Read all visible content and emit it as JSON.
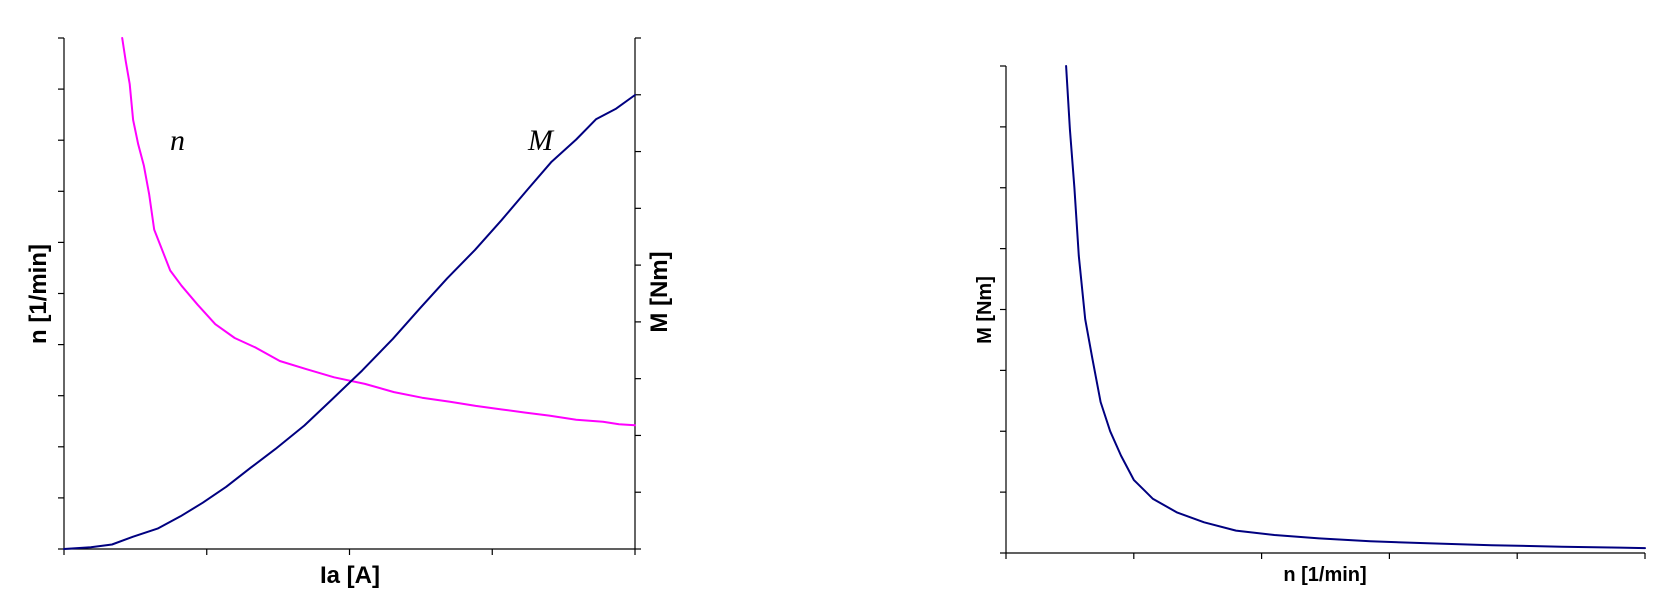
{
  "chart_data": [
    {
      "type": "line",
      "xlabel": "Ia [A]",
      "ylabel_left": "n [1/min]",
      "ylabel_right": "M [Nm]",
      "xlim": [
        0,
        1
      ],
      "ylim_left": [
        0,
        1
      ],
      "ylim_right": [
        0,
        1
      ],
      "x_ticks": 4,
      "y_left_ticks": 10,
      "y_right_ticks": 9,
      "grid": false,
      "annotations": [
        "n",
        "M"
      ],
      "series": [
        {
          "axis": "left",
          "color": "#ff00ff",
          "x": [
            0.102,
            0.108,
            0.115,
            0.121,
            0.13,
            0.14,
            0.149,
            0.158,
            0.171,
            0.186,
            0.206,
            0.234,
            0.265,
            0.299,
            0.336,
            0.378,
            0.424,
            0.473,
            0.527,
            0.578,
            0.627,
            0.676,
            0.721,
            0.767,
            0.808,
            0.85,
            0.897,
            0.944,
            0.972,
            1.0
          ],
          "y": [
            1.0,
            0.955,
            0.91,
            0.84,
            0.792,
            0.75,
            0.695,
            0.625,
            0.588,
            0.545,
            0.515,
            0.478,
            0.44,
            0.413,
            0.394,
            0.368,
            0.352,
            0.336,
            0.323,
            0.307,
            0.296,
            0.288,
            0.28,
            0.273,
            0.267,
            0.261,
            0.253,
            0.249,
            0.244,
            0.242
          ]
        },
        {
          "axis": "right",
          "color": "#000080",
          "x": [
            0.0,
            0.047,
            0.084,
            0.121,
            0.164,
            0.204,
            0.243,
            0.284,
            0.327,
            0.37,
            0.421,
            0.469,
            0.522,
            0.576,
            0.624,
            0.671,
            0.72,
            0.766,
            0.812,
            0.854,
            0.897,
            0.932,
            0.967,
            1.0
          ],
          "y": [
            0.0,
            0.004,
            0.01,
            0.027,
            0.045,
            0.072,
            0.102,
            0.137,
            0.179,
            0.22,
            0.272,
            0.329,
            0.393,
            0.463,
            0.531,
            0.596,
            0.659,
            0.724,
            0.792,
            0.853,
            0.902,
            0.947,
            0.97,
            1.0
          ]
        }
      ]
    },
    {
      "type": "line",
      "xlabel": "n [1/min]",
      "ylabel": "M [Nm]",
      "xlim": [
        0,
        1
      ],
      "ylim": [
        0,
        1
      ],
      "x_ticks": 5,
      "y_ticks": 8,
      "grid": false,
      "series": [
        {
          "color": "#000080",
          "x": [
            0.094,
            0.1,
            0.107,
            0.114,
            0.124,
            0.135,
            0.148,
            0.163,
            0.18,
            0.2,
            0.23,
            0.268,
            0.31,
            0.36,
            0.42,
            0.49,
            0.57,
            0.66,
            0.76,
            0.87,
            0.96,
            1.0
          ],
          "y": [
            1.0,
            0.87,
            0.75,
            0.61,
            0.48,
            0.4,
            0.31,
            0.25,
            0.2,
            0.15,
            0.111,
            0.083,
            0.063,
            0.046,
            0.037,
            0.03,
            0.024,
            0.02,
            0.016,
            0.013,
            0.011,
            0.01
          ]
        }
      ]
    }
  ]
}
